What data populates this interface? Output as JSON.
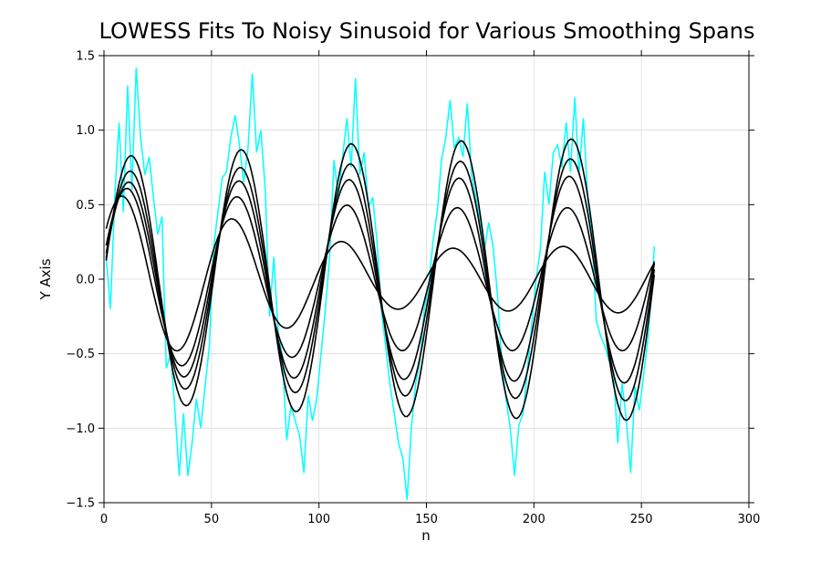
{
  "chart_data": {
    "type": "line",
    "title": "LOWESS Fits To Noisy Sinusoid for Various Smoothing Spans",
    "xlabel": "n",
    "ylabel": "Y Axis",
    "xlim": [
      0,
      300
    ],
    "ylim": [
      -1.5,
      1.5
    ],
    "xticks": [
      0,
      50,
      100,
      150,
      200,
      250,
      300
    ],
    "xtick_labels": [
      "0",
      "50",
      "100",
      "150",
      "200",
      "250",
      "300"
    ],
    "yticks": [
      -1.5,
      -1.0,
      -0.5,
      0.0,
      0.5,
      1.0,
      1.5
    ],
    "ytick_labels": [
      "−1.5",
      "−1.0",
      "−0.5",
      "0.0",
      "0.5",
      "1.0",
      "1.5"
    ],
    "grid": true,
    "x_range": [
      1,
      256
    ],
    "period": 51.2,
    "noisy_series": {
      "color": "#00ffff",
      "x": [
        1,
        3,
        5,
        7,
        9,
        11,
        13,
        15,
        17,
        19,
        21,
        23,
        25,
        27,
        29,
        31,
        33,
        35,
        37,
        39,
        41,
        43,
        45,
        47,
        49,
        51,
        53,
        55,
        57,
        59,
        61,
        63,
        65,
        67,
        69,
        71,
        73,
        75,
        77,
        79,
        81,
        83,
        85,
        87,
        89,
        91,
        93,
        95,
        97,
        99,
        101,
        103,
        105,
        107,
        109,
        111,
        113,
        115,
        117,
        119,
        121,
        123,
        125,
        127,
        129,
        131,
        133,
        135,
        137,
        139,
        141,
        143,
        145,
        147,
        149,
        151,
        153,
        155,
        157,
        159,
        161,
        163,
        165,
        167,
        169,
        171,
        173,
        175,
        177,
        179,
        181,
        183,
        185,
        187,
        189,
        191,
        193,
        195,
        197,
        199,
        201,
        203,
        205,
        207,
        209,
        211,
        213,
        215,
        217,
        219,
        221,
        223,
        225,
        227,
        229,
        231,
        233,
        235,
        237,
        239,
        241,
        243,
        245,
        247,
        249,
        251,
        253,
        255,
        256
      ],
      "y": [
        0.15,
        -0.2,
        0.55,
        1.05,
        0.45,
        1.3,
        0.6,
        1.42,
        0.95,
        0.7,
        0.82,
        0.55,
        0.3,
        0.42,
        -0.6,
        -0.5,
        -0.88,
        -1.32,
        -0.9,
        -1.32,
        -1.1,
        -0.8,
        -1.0,
        -0.72,
        -0.45,
        0.22,
        0.45,
        0.68,
        0.72,
        0.95,
        1.1,
        0.9,
        0.65,
        0.88,
        1.38,
        0.85,
        1.0,
        0.6,
        -0.25,
        0.15,
        -0.35,
        -0.52,
        -1.08,
        -0.85,
        -0.95,
        -1.05,
        -1.3,
        -0.78,
        -0.95,
        -0.8,
        -0.5,
        -0.2,
        0.15,
        0.8,
        0.55,
        0.82,
        1.08,
        0.75,
        1.35,
        0.7,
        0.85,
        0.48,
        0.55,
        0.25,
        -0.2,
        -0.45,
        -0.7,
        -0.9,
        -1.1,
        -1.2,
        -1.48,
        -1.0,
        -0.7,
        -0.55,
        -0.2,
        -0.05,
        0.25,
        0.45,
        0.8,
        0.95,
        1.2,
        0.88,
        0.95,
        0.82,
        1.18,
        0.7,
        0.55,
        0.38,
        0.2,
        0.38,
        0.22,
        -0.1,
        -0.55,
        -0.8,
        -1.0,
        -1.32,
        -0.98,
        -0.9,
        -0.6,
        -0.3,
        0.0,
        0.2,
        0.72,
        0.5,
        0.85,
        0.9,
        0.75,
        1.05,
        0.72,
        1.22,
        0.7,
        1.08,
        0.55,
        0.3,
        -0.28,
        -0.38,
        -0.45,
        -0.55,
        -0.62,
        -1.1,
        -0.7,
        -0.95,
        -1.3,
        -0.72,
        -0.88,
        -0.65,
        -0.4,
        -0.05,
        0.22
      ]
    },
    "fit_series": [
      {
        "color": "#000000",
        "amplitudes": [
          0.58,
          0.2,
          0.23
        ],
        "phase": 0.5
      },
      {
        "color": "#000000",
        "amplitudes": [
          0.62,
          0.48,
          0.48
        ],
        "phase": 0.25
      },
      {
        "color": "#000000",
        "amplitudes": [
          0.65,
          0.67,
          0.7
        ],
        "phase": 0.15
      },
      {
        "color": "#000000",
        "amplitudes": [
          0.72,
          0.78,
          0.82
        ],
        "phase": 0.08
      },
      {
        "color": "#000000",
        "amplitudes": [
          0.82,
          0.92,
          0.95
        ],
        "phase": 0.03
      }
    ]
  }
}
